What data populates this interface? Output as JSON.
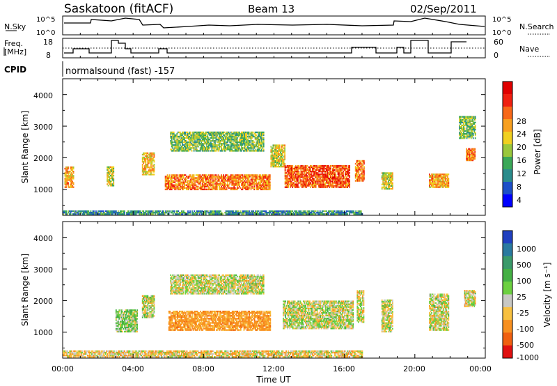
{
  "header": {
    "title": "Saskatoon (fitACF)",
    "beam": "Beam 13",
    "date": "02/Sep/2011"
  },
  "strips": {
    "nsky_label": "N.Sky",
    "nsky_ticks": [
      "10^5",
      "10^0"
    ],
    "nsearch_label": "N.Search",
    "nsearch_ticks": [
      "10^5",
      "10^0"
    ],
    "freq_label": "Freq.",
    "freq_unit": "[MHz]",
    "freq_ticks": [
      "18",
      "8"
    ],
    "nave_label": "Nave",
    "nave_ticks": [
      "60",
      "0"
    ],
    "cpid_label": "CPID",
    "cpid_value": "normalsound (fast) -157"
  },
  "colorbars": {
    "power": {
      "label": "Power [dB]",
      "ticks": [
        "28",
        "24",
        "20",
        "16",
        "12",
        "8",
        "4"
      ],
      "colors": [
        "#0000ff",
        "#1c4fc8",
        "#2a8c8c",
        "#3aa858",
        "#9ac83c",
        "#f0d020",
        "#f8a020",
        "#f86818",
        "#f02010",
        "#e00000"
      ]
    },
    "velocity": {
      "label": "Velocity [m s⁻¹]",
      "ticks": [
        "1000",
        "500",
        "100",
        "25",
        "-25",
        "-100",
        "-500",
        "-1000"
      ],
      "colors": [
        "#2040c0",
        "#2a7aa0",
        "#3a9a6a",
        "#44b044",
        "#6cd040",
        "#c8c8c4",
        "#f8c040",
        "#f89020",
        "#f06010",
        "#e01010"
      ]
    }
  },
  "axes": {
    "ylabel": "Slant Range [km]",
    "xlabel": "Time UT",
    "yticks": [
      "1000",
      "2000",
      "3000",
      "4000"
    ],
    "xticks": [
      "00:00",
      "04:00",
      "08:00",
      "12:00",
      "16:00",
      "20:00",
      "00:00"
    ]
  },
  "chart_data": [
    {
      "type": "heatmap",
      "title": "Power [dB]",
      "xlabel": "",
      "ylabel": "Slant Range [km]",
      "xlim": [
        0,
        24
      ],
      "ylim": [
        180,
        4500
      ],
      "x_unit": "hours UT",
      "color_scale": [
        0,
        30
      ],
      "regions": [
        {
          "t0": 0.1,
          "t1": 0.6,
          "r0": 1050,
          "r1": 1700,
          "v": 20
        },
        {
          "t0": 2.5,
          "t1": 2.9,
          "r0": 1100,
          "r1": 1700,
          "v": 16
        },
        {
          "t0": 4.5,
          "t1": 5.2,
          "r0": 1450,
          "r1": 2150,
          "v": 18
        },
        {
          "t0": 5.8,
          "t1": 11.8,
          "r0": 980,
          "r1": 1450,
          "v": 22
        },
        {
          "t0": 6.1,
          "t1": 11.4,
          "r0": 2200,
          "r1": 2800,
          "v": 12
        },
        {
          "t0": 11.8,
          "t1": 12.6,
          "r0": 1700,
          "r1": 2400,
          "v": 16
        },
        {
          "t0": 12.6,
          "t1": 16.3,
          "r0": 1050,
          "r1": 1750,
          "v": 24
        },
        {
          "t0": 16.6,
          "t1": 17.1,
          "r0": 1250,
          "r1": 1900,
          "v": 22
        },
        {
          "t0": 18.1,
          "t1": 18.7,
          "r0": 1000,
          "r1": 1500,
          "v": 16
        },
        {
          "t0": 20.8,
          "t1": 21.9,
          "r0": 1050,
          "r1": 1500,
          "v": 20
        },
        {
          "t0": 22.9,
          "t1": 23.4,
          "r0": 1900,
          "r1": 2300,
          "v": 22
        },
        {
          "t0": 22.5,
          "t1": 23.4,
          "r0": 2600,
          "r1": 3300,
          "v": 12
        },
        {
          "t0": 0.0,
          "t1": 17.0,
          "r0": 200,
          "r1": 320,
          "v": 8
        }
      ]
    },
    {
      "type": "heatmap",
      "title": "Velocity [m s⁻¹]",
      "xlabel": "Time UT",
      "ylabel": "Slant Range [km]",
      "xlim": [
        0,
        24
      ],
      "ylim": [
        180,
        4500
      ],
      "x_unit": "hours UT",
      "color_scale": [
        -1000,
        1000
      ],
      "regions": [
        {
          "t0": 4.5,
          "t1": 5.2,
          "r0": 1450,
          "r1": 2150,
          "v": 0
        },
        {
          "t0": 6.0,
          "t1": 11.8,
          "r0": 1050,
          "r1": 1650,
          "v": -150
        },
        {
          "t0": 6.1,
          "t1": 11.4,
          "r0": 2200,
          "r1": 2800,
          "v": 0
        },
        {
          "t0": 12.5,
          "t1": 16.5,
          "r0": 1100,
          "r1": 2000,
          "v": 0
        },
        {
          "t0": 16.7,
          "t1": 17.1,
          "r0": 1300,
          "r1": 2300,
          "v": 0
        },
        {
          "t0": 18.1,
          "t1": 18.7,
          "r0": 1000,
          "r1": 2000,
          "v": 0
        },
        {
          "t0": 20.8,
          "t1": 21.9,
          "r0": 1050,
          "r1": 2200,
          "v": 0
        },
        {
          "t0": 22.8,
          "t1": 23.4,
          "r0": 1800,
          "r1": 2300,
          "v": 0
        },
        {
          "t0": 3.0,
          "t1": 4.2,
          "r0": 1000,
          "r1": 1700,
          "v": 60
        },
        {
          "t0": 0.0,
          "t1": 17.0,
          "r0": 200,
          "r1": 400,
          "v": -50
        }
      ]
    }
  ]
}
